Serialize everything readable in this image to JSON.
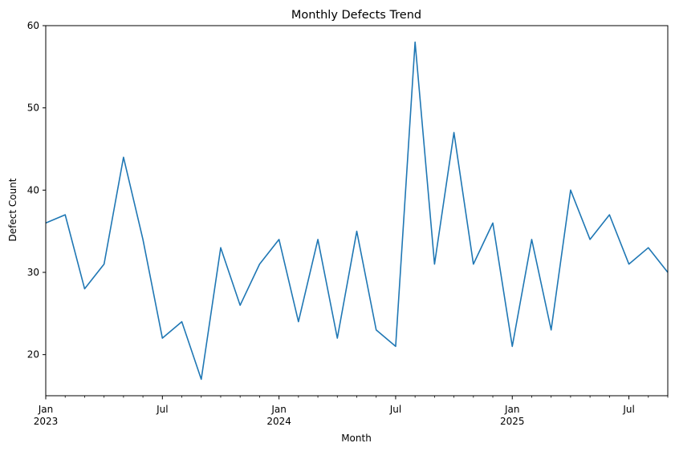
{
  "chart_data": {
    "type": "line",
    "title": "Monthly Defects Trend",
    "xlabel": "Month",
    "ylabel": "Defect Count",
    "ylim": [
      15,
      60
    ],
    "grid": false,
    "legend": "none",
    "x": [
      "2023-01",
      "2023-02",
      "2023-03",
      "2023-04",
      "2023-05",
      "2023-06",
      "2023-07",
      "2023-08",
      "2023-09",
      "2023-10",
      "2023-11",
      "2023-12",
      "2024-01",
      "2024-02",
      "2024-03",
      "2024-04",
      "2024-05",
      "2024-06",
      "2024-07",
      "2024-08",
      "2024-09",
      "2024-10",
      "2024-11",
      "2024-12",
      "2025-01",
      "2025-02",
      "2025-03",
      "2025-04",
      "2025-05",
      "2025-06",
      "2025-07",
      "2025-08",
      "2025-09"
    ],
    "series": [
      {
        "color": "#1f77b4",
        "values": [
          36,
          37,
          28,
          31,
          44,
          34,
          22,
          24,
          17,
          33,
          26,
          31,
          34,
          24,
          34,
          22,
          35,
          23,
          21,
          58,
          31,
          47,
          31,
          36,
          21,
          34,
          23,
          40,
          34,
          37,
          31,
          33,
          30
        ]
      }
    ],
    "y_ticks": [
      "20",
      "30",
      "40",
      "50",
      "60"
    ],
    "x_major_ticks": [
      {
        "month": "2023-01",
        "label": "Jan",
        "year": "2023"
      },
      {
        "month": "2023-07",
        "label": "Jul",
        "year": ""
      },
      {
        "month": "2024-01",
        "label": "Jan",
        "year": "2024"
      },
      {
        "month": "2024-07",
        "label": "Jul",
        "year": ""
      },
      {
        "month": "2025-01",
        "label": "Jan",
        "year": "2025"
      },
      {
        "month": "2025-07",
        "label": "Jul",
        "year": ""
      }
    ]
  }
}
